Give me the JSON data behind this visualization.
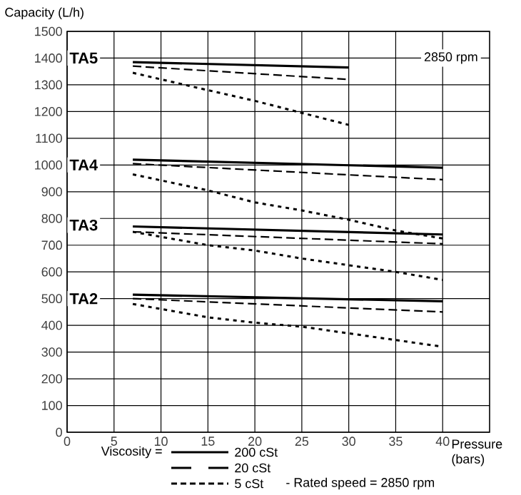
{
  "chart_data": {
    "type": "line",
    "xlabel": "Pressure (bars)",
    "ylabel": "Capacity  (L/h)",
    "legend_title": "Viscosity =",
    "xlim": [
      0,
      45
    ],
    "xticks": [
      0,
      5,
      10,
      15,
      20,
      25,
      30,
      35,
      40
    ],
    "ylim": [
      0,
      1500
    ],
    "yticks": [
      0,
      100,
      200,
      300,
      400,
      500,
      600,
      700,
      800,
      900,
      1000,
      1100,
      1200,
      1300,
      1400,
      1500
    ],
    "grid": true,
    "legend": "bottom",
    "series": [
      {
        "name": "200 cSt",
        "color": "#000000",
        "line_style": "solid",
        "x": [
          7,
          30
        ],
        "values": [
          1385,
          1365
        ]
      },
      {
        "name": "20 cSt",
        "color": "#000000",
        "line_style": "dashed",
        "x": [
          7,
          30
        ],
        "values": [
          1370,
          1320
        ]
      },
      {
        "name": "5 cSt",
        "color": "#000000",
        "line_style": "dotted",
        "x": [
          7,
          15,
          20,
          25,
          30
        ],
        "values": [
          1345,
          1280,
          1240,
          1195,
          1150
        ]
      },
      {
        "color": "#000000",
        "line_style": "solid",
        "x": [
          7,
          40
        ],
        "values": [
          1020,
          990
        ]
      },
      {
        "color": "#000000",
        "line_style": "dashed",
        "x": [
          7,
          40
        ],
        "values": [
          1005,
          945
        ]
      },
      {
        "color": "#000000",
        "line_style": "dotted",
        "x": [
          7,
          15,
          20,
          25,
          30,
          35,
          40
        ],
        "values": [
          965,
          905,
          860,
          830,
          795,
          755,
          725
        ]
      },
      {
        "color": "#000000",
        "line_style": "solid",
        "x": [
          7,
          40
        ],
        "values": [
          770,
          740
        ]
      },
      {
        "color": "#000000",
        "line_style": "dashed",
        "x": [
          7,
          40
        ],
        "values": [
          750,
          705
        ]
      },
      {
        "color": "#000000",
        "line_style": "dotted",
        "x": [
          7,
          15,
          20,
          25,
          30,
          35,
          40
        ],
        "values": [
          750,
          700,
          680,
          650,
          625,
          600,
          570
        ]
      },
      {
        "color": "#000000",
        "line_style": "solid",
        "x": [
          7,
          40
        ],
        "values": [
          515,
          490
        ]
      },
      {
        "color": "#000000",
        "line_style": "dashed",
        "x": [
          7,
          40
        ],
        "values": [
          500,
          450
        ]
      },
      {
        "color": "#000000",
        "line_style": "dotted",
        "x": [
          7,
          15,
          20,
          25,
          30,
          35,
          40
        ],
        "values": [
          480,
          430,
          410,
          395,
          370,
          345,
          320
        ]
      }
    ],
    "annotations": [
      {
        "text": "TA5",
        "y": 1400
      },
      {
        "text": "TA4",
        "y": 1000
      },
      {
        "text": "TA3",
        "y": 775
      },
      {
        "text": "TA2",
        "y": 500
      },
      "2850 rpm",
      "- Rated speed = 2850 rpm"
    ]
  }
}
